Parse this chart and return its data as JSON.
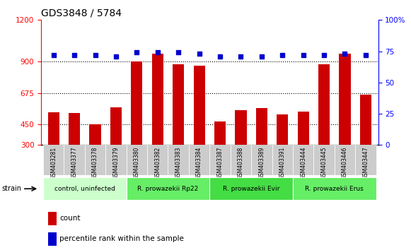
{
  "title": "GDS3848 / 5784",
  "samples": [
    "GSM403281",
    "GSM403377",
    "GSM403378",
    "GSM403379",
    "GSM403380",
    "GSM403382",
    "GSM403383",
    "GSM403384",
    "GSM403387",
    "GSM403388",
    "GSM403389",
    "GSM403391",
    "GSM403444",
    "GSM403445",
    "GSM403446",
    "GSM403447"
  ],
  "counts": [
    535,
    530,
    450,
    570,
    900,
    960,
    880,
    870,
    470,
    550,
    565,
    520,
    540,
    880,
    960,
    665
  ],
  "percentile_ranks": [
    72,
    72,
    72,
    71,
    74,
    74,
    74,
    73,
    71,
    71,
    71,
    72,
    72,
    72,
    73,
    72
  ],
  "groups": [
    {
      "label": "control, uninfected",
      "start": 0,
      "end": 4,
      "color": "#ccffcc"
    },
    {
      "label": "R. prowazekii Rp22",
      "start": 4,
      "end": 8,
      "color": "#66ff66"
    },
    {
      "label": "R. prowazekii Evir",
      "start": 8,
      "end": 12,
      "color": "#66ff66"
    },
    {
      "label": "R. prowazekii Erus",
      "start": 12,
      "end": 16,
      "color": "#66ff66"
    }
  ],
  "ylim_left": [
    300,
    1200
  ],
  "ylim_right": [
    0,
    100
  ],
  "yticks_left": [
    300,
    450,
    675,
    900,
    1200
  ],
  "yticks_right": [
    0,
    25,
    50,
    75,
    100
  ],
  "bar_color": "#cc0000",
  "dot_color": "#0000cc",
  "grid_color": "#000000",
  "bg_color": "#ffffff",
  "plot_bg_color": "#ffffff",
  "legend_count_color": "#cc0000",
  "legend_pct_color": "#0000cc",
  "xticklabel_bg": "#cccccc"
}
